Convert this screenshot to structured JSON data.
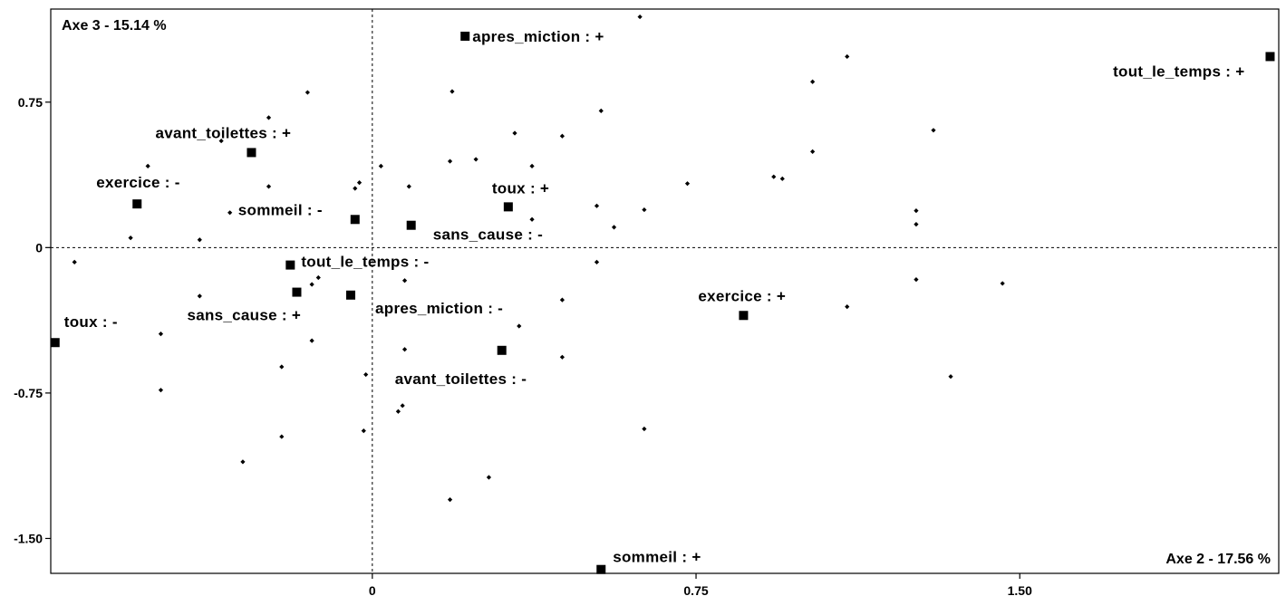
{
  "chart_data": {
    "type": "scatter",
    "axis_x_title": "Axe 2  -  17.56 %",
    "axis_y_title": "Axe 3  -  15.14 %",
    "xlim": [
      -0.745,
      2.1
    ],
    "ylim": [
      -1.68,
      1.23
    ],
    "x_ticks": [
      0,
      0.75,
      1.5
    ],
    "x_tick_labels": [
      "0",
      "0.75",
      "1.50"
    ],
    "y_ticks": [
      0.75,
      0,
      -0.75,
      -1.5
    ],
    "y_tick_labels": [
      "0.75",
      "0",
      "-0.75",
      "-1.50"
    ],
    "grid": false,
    "reference_lines": "dashed at x=0 and y=0",
    "categories": [
      {
        "label": "apres_miction : +",
        "x": 0.215,
        "y": 1.09
      },
      {
        "label": "tout_le_temps : +",
        "x": 2.08,
        "y": 0.985
      },
      {
        "label": "avant_toilettes : +",
        "x": -0.28,
        "y": 0.49
      },
      {
        "label": "exercice : -",
        "x": -0.545,
        "y": 0.225
      },
      {
        "label": "sommeil : -",
        "x": -0.04,
        "y": 0.145
      },
      {
        "label": "toux : +",
        "x": 0.315,
        "y": 0.21
      },
      {
        "label": "sans_cause : -",
        "x": 0.09,
        "y": 0.115
      },
      {
        "label": "tout_le_temps : -",
        "x": -0.19,
        "y": -0.09
      },
      {
        "label": "sans_cause : +",
        "x": -0.175,
        "y": -0.23
      },
      {
        "label": "apres_miction : -",
        "x": -0.05,
        "y": -0.245
      },
      {
        "label": "toux : -",
        "x": -0.735,
        "y": -0.49
      },
      {
        "label": "exercice : +",
        "x": 0.86,
        "y": -0.35
      },
      {
        "label": "avant_toilettes : -",
        "x": 0.3,
        "y": -0.53
      },
      {
        "label": "sommeil : +",
        "x": 0.53,
        "y": -1.66
      }
    ],
    "individuals": [
      [
        0.62,
        1.19
      ],
      [
        0.185,
        0.805
      ],
      [
        0.53,
        0.705
      ],
      [
        1.1,
        0.985
      ],
      [
        1.02,
        0.855
      ],
      [
        -0.15,
        0.8
      ],
      [
        -0.24,
        0.67
      ],
      [
        0.33,
        0.59
      ],
      [
        0.44,
        0.575
      ],
      [
        1.3,
        0.605
      ],
      [
        -0.52,
        0.42
      ],
      [
        -0.35,
        0.55
      ],
      [
        0.02,
        0.42
      ],
      [
        0.18,
        0.445
      ],
      [
        0.24,
        0.455
      ],
      [
        0.37,
        0.42
      ],
      [
        1.02,
        0.495
      ],
      [
        -0.04,
        0.305
      ],
      [
        -0.03,
        0.335
      ],
      [
        -0.24,
        0.315
      ],
      [
        0.085,
        0.315
      ],
      [
        0.93,
        0.365
      ],
      [
        0.95,
        0.355
      ],
      [
        0.73,
        0.33
      ],
      [
        0.52,
        0.215
      ],
      [
        0.63,
        0.195
      ],
      [
        -0.33,
        0.18
      ],
      [
        1.26,
        0.19
      ],
      [
        1.26,
        0.12
      ],
      [
        0.37,
        0.145
      ],
      [
        0.56,
        0.105
      ],
      [
        -0.56,
        0.05
      ],
      [
        -0.4,
        0.04
      ],
      [
        -0.69,
        -0.075
      ],
      [
        0.52,
        -0.075
      ],
      [
        -0.125,
        -0.155
      ],
      [
        -0.14,
        -0.19
      ],
      [
        0.075,
        -0.17
      ],
      [
        -0.4,
        -0.25
      ],
      [
        0.44,
        -0.27
      ],
      [
        1.26,
        -0.165
      ],
      [
        1.46,
        -0.185
      ],
      [
        1.1,
        -0.305
      ],
      [
        0.34,
        -0.405
      ],
      [
        -0.49,
        -0.445
      ],
      [
        -0.14,
        -0.48
      ],
      [
        0.075,
        -0.525
      ],
      [
        0.44,
        -0.565
      ],
      [
        -0.21,
        -0.615
      ],
      [
        -0.015,
        -0.655
      ],
      [
        1.34,
        -0.665
      ],
      [
        -0.49,
        -0.735
      ],
      [
        0.07,
        -0.815
      ],
      [
        0.06,
        -0.845
      ],
      [
        -0.02,
        -0.945
      ],
      [
        0.63,
        -0.935
      ],
      [
        -0.21,
        -0.975
      ],
      [
        -0.3,
        -1.105
      ],
      [
        0.27,
        -1.185
      ],
      [
        0.18,
        -1.3
      ]
    ]
  }
}
